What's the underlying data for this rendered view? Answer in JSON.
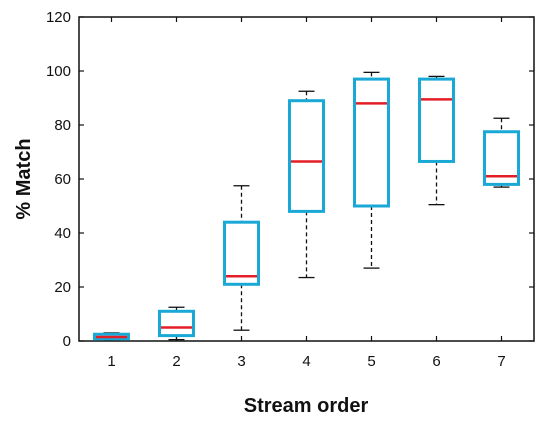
{
  "chart_data": {
    "type": "boxplot",
    "xlabel": "Stream order",
    "ylabel": "% Match",
    "ylim": [
      0,
      120
    ],
    "yticks": [
      0,
      20,
      40,
      60,
      80,
      100,
      120
    ],
    "categories": [
      "1",
      "2",
      "3",
      "4",
      "5",
      "6",
      "7"
    ],
    "boxes": [
      {
        "category": "1",
        "whisker_low": 0.5,
        "q1": 0.8,
        "median": 1.5,
        "q3": 2.5,
        "whisker_high": 3
      },
      {
        "category": "2",
        "whisker_low": 0.5,
        "q1": 2,
        "median": 5,
        "q3": 11,
        "whisker_high": 12.5
      },
      {
        "category": "3",
        "whisker_low": 4,
        "q1": 21,
        "median": 24,
        "q3": 44,
        "whisker_high": 57.5
      },
      {
        "category": "4",
        "whisker_low": 23.5,
        "q1": 48,
        "median": 66.5,
        "q3": 89,
        "whisker_high": 92.5
      },
      {
        "category": "5",
        "whisker_low": 27,
        "q1": 50,
        "median": 88,
        "q3": 97,
        "whisker_high": 99.5
      },
      {
        "category": "6",
        "whisker_low": 50.5,
        "q1": 66.5,
        "median": 89.5,
        "q3": 97,
        "whisker_high": 98
      },
      {
        "category": "7",
        "whisker_low": 57,
        "q1": 58,
        "median": 61,
        "q3": 77.5,
        "whisker_high": 82.5
      }
    ],
    "colors": {
      "box": "#1aa9d6",
      "median": "#e41e26",
      "whisker": "#111111",
      "axis": "#111111"
    },
    "grid": false
  }
}
